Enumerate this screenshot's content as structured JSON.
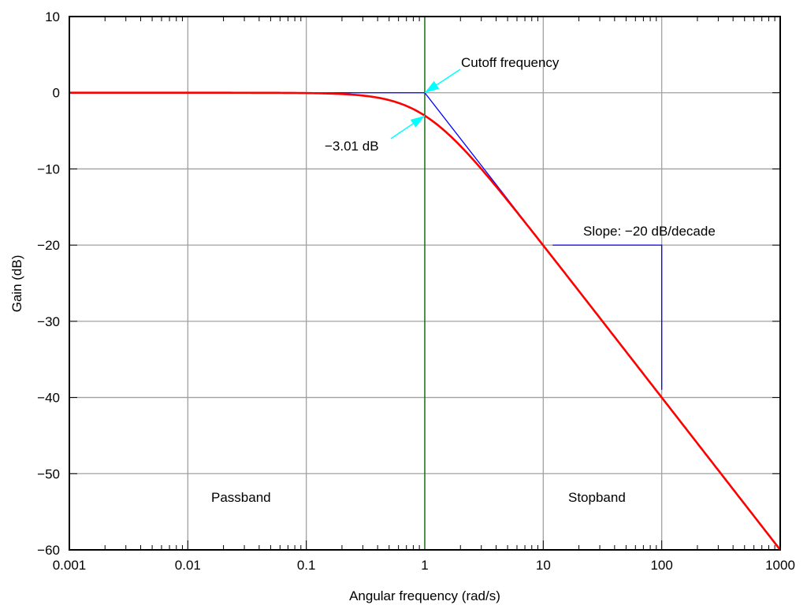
{
  "chart_data": {
    "type": "line",
    "title": "",
    "xlabel": "Angular frequency (rad/s)",
    "ylabel": "Gain (dB)",
    "xscale": "log",
    "xlim": [
      0.001,
      1000
    ],
    "ylim": [
      -60,
      10
    ],
    "grid": true,
    "x_ticks": [
      0.001,
      0.01,
      0.1,
      1,
      10,
      100,
      1000
    ],
    "x_tick_labels": [
      "0.001",
      "0.01",
      "0.1",
      "1",
      "10",
      "100",
      "1000"
    ],
    "y_ticks": [
      10,
      0,
      -10,
      -20,
      -30,
      -40,
      -50,
      -60
    ],
    "y_tick_labels": [
      "10",
      "0",
      "−10",
      "−20",
      "−30",
      "−40",
      "−50",
      "−60"
    ],
    "series": [
      {
        "name": "Gain response",
        "formula": "-10*log10(1+w^2)",
        "color": "#ff0000"
      },
      {
        "name": "Asymptote",
        "x": [
          0.001,
          1,
          10
        ],
        "y": [
          0,
          0,
          -20
        ],
        "color": "#0000ff"
      },
      {
        "name": "Slope triangle",
        "x": [
          12,
          100,
          100
        ],
        "y": [
          -20,
          -20,
          -39
        ],
        "color": "#0000ff"
      },
      {
        "name": "Cutoff line",
        "x": [
          1,
          1
        ],
        "y": [
          10,
          -60
        ],
        "color": "#006400"
      }
    ],
    "annotations": [
      {
        "text": "Cutoff frequency",
        "arrow_to": [
          1,
          0
        ],
        "color": "#00ffff"
      },
      {
        "text": "−3.01 dB",
        "arrow_to": [
          1,
          -3.01
        ],
        "color": "#00ffff"
      },
      {
        "text": "Slope: −20 dB/decade"
      },
      {
        "text": "Passband"
      },
      {
        "text": "Stopband"
      }
    ]
  }
}
